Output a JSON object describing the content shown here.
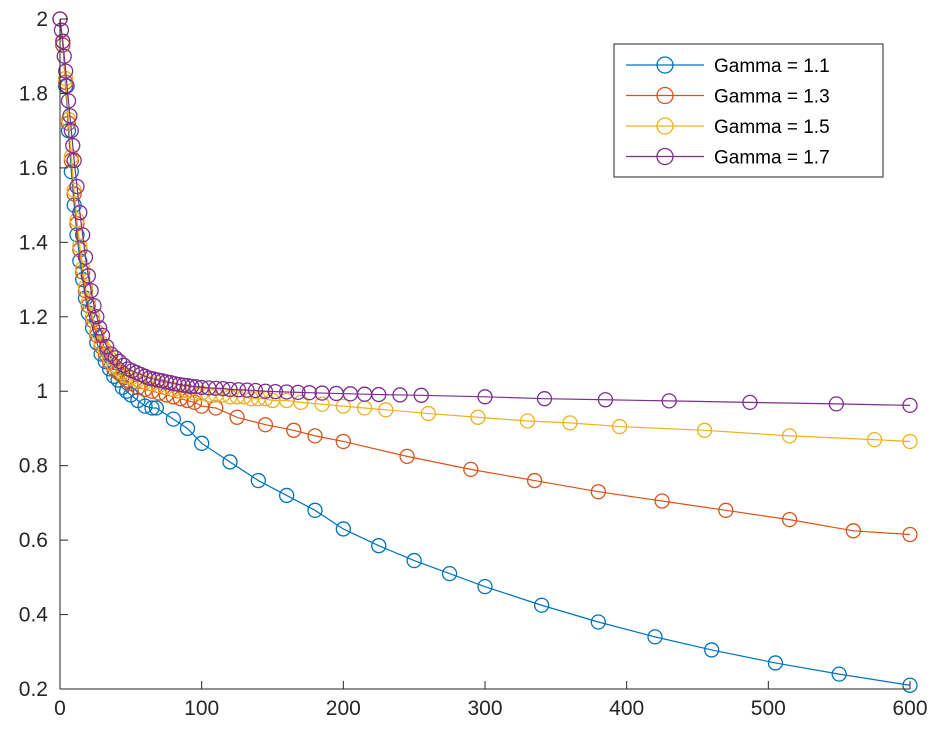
{
  "chart_data": {
    "type": "line",
    "title": "",
    "xlabel": "",
    "ylabel": "",
    "xlim": [
      0,
      600
    ],
    "ylim": [
      0.2,
      2
    ],
    "xticks": [
      0,
      100,
      200,
      300,
      400,
      500,
      600
    ],
    "xtick_labels": [
      "0",
      "100",
      "200",
      "300",
      "400",
      "500",
      "600"
    ],
    "yticks": [
      0.2,
      0.4,
      0.6,
      0.8,
      1.0,
      1.2,
      1.4,
      1.6,
      1.8,
      2.0
    ],
    "ytick_labels": [
      "0.2",
      "0.4",
      "0.6",
      "0.8",
      "1",
      "1.2",
      "1.4",
      "1.6",
      "1.8",
      "2"
    ],
    "grid": false,
    "legend_position": "top-right",
    "marker": "circle",
    "series": [
      {
        "name": "Gamma = 1.1",
        "color": "#0072BD",
        "x": [
          0,
          2,
          4,
          6,
          8,
          10,
          12,
          14,
          16,
          18,
          20,
          23,
          26,
          29,
          32,
          35,
          38,
          41,
          44,
          47,
          50,
          55,
          60,
          65,
          68,
          80,
          90,
          100,
          120,
          140,
          160,
          180,
          200,
          225,
          250,
          275,
          300,
          340,
          380,
          420,
          460,
          505,
          550,
          600
        ],
        "y": [
          2.0,
          1.93,
          1.82,
          1.7,
          1.59,
          1.5,
          1.42,
          1.35,
          1.3,
          1.25,
          1.21,
          1.17,
          1.13,
          1.1,
          1.08,
          1.06,
          1.04,
          1.03,
          1.01,
          1.0,
          0.99,
          0.975,
          0.96,
          0.955,
          0.955,
          0.925,
          0.9,
          0.86,
          0.81,
          0.76,
          0.72,
          0.68,
          0.63,
          0.585,
          0.545,
          0.51,
          0.475,
          0.425,
          0.38,
          0.34,
          0.305,
          0.27,
          0.24,
          0.21
        ]
      },
      {
        "name": "Gamma = 1.3",
        "color": "#D95319",
        "x": [
          0,
          2,
          4,
          6,
          8,
          10,
          12,
          14,
          16,
          18,
          20,
          23,
          26,
          29,
          32,
          35,
          38,
          41,
          44,
          47,
          50,
          55,
          60,
          65,
          70,
          75,
          80,
          85,
          90,
          95,
          100,
          110,
          125,
          145,
          165,
          180,
          200,
          245,
          290,
          335,
          380,
          425,
          470,
          515,
          560,
          600
        ],
        "y": [
          2.0,
          1.93,
          1.83,
          1.72,
          1.62,
          1.53,
          1.45,
          1.38,
          1.32,
          1.27,
          1.23,
          1.19,
          1.15,
          1.12,
          1.1,
          1.08,
          1.06,
          1.05,
          1.04,
          1.03,
          1.02,
          1.01,
          1.005,
          1.0,
          0.995,
          0.99,
          0.985,
          0.98,
          0.975,
          0.97,
          0.96,
          0.955,
          0.93,
          0.91,
          0.895,
          0.88,
          0.865,
          0.825,
          0.79,
          0.76,
          0.73,
          0.705,
          0.68,
          0.655,
          0.625,
          0.615
        ]
      },
      {
        "name": "Gamma = 1.5",
        "color": "#EDB120",
        "x": [
          0,
          2,
          4,
          6,
          8,
          10,
          12,
          14,
          16,
          18,
          20,
          23,
          26,
          29,
          32,
          35,
          38,
          41,
          44,
          47,
          50,
          55,
          60,
          65,
          70,
          75,
          80,
          85,
          90,
          95,
          100,
          105,
          110,
          115,
          120,
          125,
          130,
          135,
          140,
          145,
          150,
          160,
          170,
          185,
          200,
          215,
          230,
          260,
          295,
          330,
          360,
          395,
          455,
          515,
          575,
          600
        ],
        "y": [
          2.0,
          1.94,
          1.84,
          1.73,
          1.63,
          1.54,
          1.46,
          1.39,
          1.33,
          1.28,
          1.24,
          1.2,
          1.16,
          1.13,
          1.11,
          1.09,
          1.07,
          1.06,
          1.05,
          1.04,
          1.035,
          1.03,
          1.025,
          1.02,
          1.015,
          1.01,
          1.005,
          1.0,
          1.0,
          0.995,
          0.995,
          0.99,
          0.99,
          0.99,
          0.985,
          0.985,
          0.985,
          0.98,
          0.98,
          0.98,
          0.975,
          0.975,
          0.97,
          0.965,
          0.96,
          0.955,
          0.95,
          0.94,
          0.93,
          0.92,
          0.915,
          0.905,
          0.895,
          0.88,
          0.87,
          0.865
        ]
      },
      {
        "name": "Gamma = 1.7",
        "color": "#7E2F8E",
        "x": [
          0,
          1,
          2,
          3,
          4,
          5,
          6,
          7,
          8,
          9,
          10,
          12,
          14,
          16,
          18,
          20,
          22,
          24,
          26,
          28,
          30,
          33,
          36,
          39,
          42,
          45,
          48,
          51,
          54,
          57,
          60,
          63,
          66,
          69,
          72,
          75,
          78,
          81,
          84,
          87,
          90,
          93,
          96,
          100,
          105,
          110,
          115,
          120,
          126,
          132,
          138,
          145,
          152,
          160,
          168,
          176,
          185,
          195,
          205,
          215,
          225,
          240,
          255,
          300,
          342,
          385,
          430,
          487,
          548,
          600
        ],
        "y": [
          2.0,
          1.97,
          1.94,
          1.9,
          1.86,
          1.82,
          1.78,
          1.74,
          1.7,
          1.66,
          1.62,
          1.55,
          1.48,
          1.42,
          1.36,
          1.31,
          1.27,
          1.23,
          1.2,
          1.17,
          1.15,
          1.12,
          1.1,
          1.09,
          1.08,
          1.07,
          1.06,
          1.055,
          1.05,
          1.045,
          1.04,
          1.035,
          1.033,
          1.03,
          1.028,
          1.025,
          1.023,
          1.02,
          1.018,
          1.016,
          1.015,
          1.013,
          1.012,
          1.01,
          1.009,
          1.008,
          1.007,
          1.005,
          1.004,
          1.003,
          1.002,
          1.0,
          0.999,
          0.998,
          0.997,
          0.996,
          0.995,
          0.994,
          0.993,
          0.992,
          0.991,
          0.99,
          0.989,
          0.985,
          0.98,
          0.977,
          0.974,
          0.97,
          0.966,
          0.962
        ]
      }
    ]
  }
}
